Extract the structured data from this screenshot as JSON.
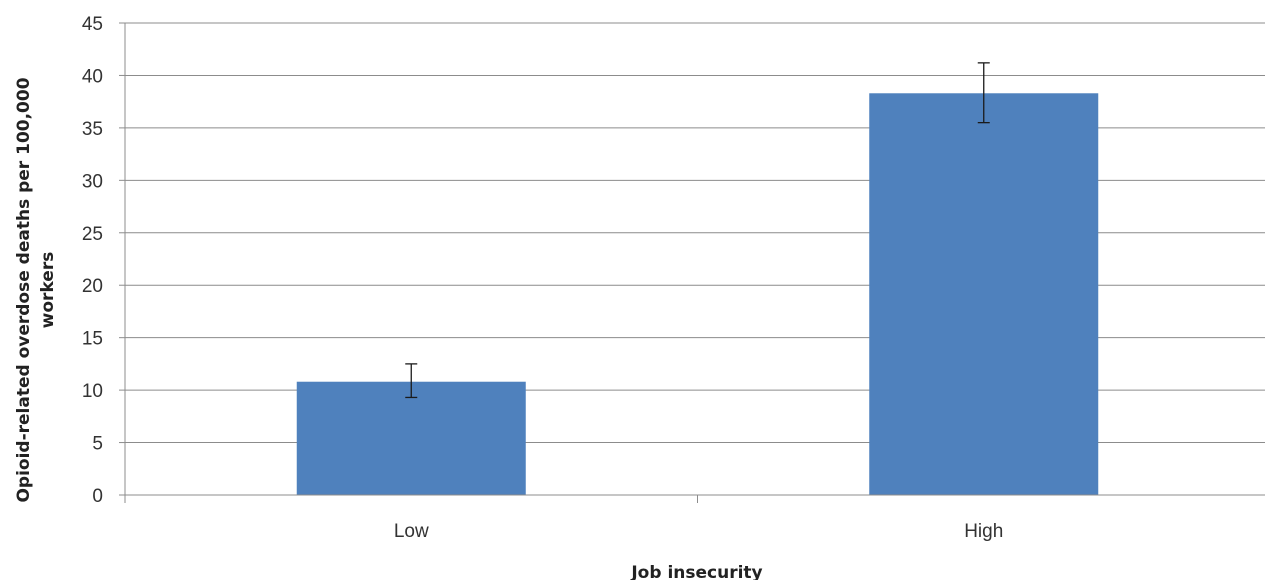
{
  "chart_data": {
    "type": "bar",
    "categories": [
      "Low",
      "High"
    ],
    "values": [
      10.8,
      38.3
    ],
    "error_low": [
      9.3,
      35.5
    ],
    "error_high": [
      12.5,
      41.2
    ],
    "xlabel": "Job insecurity",
    "ylabel": "Opioid-related overdose  deaths per 100,000 workers",
    "ylabel_lines": [
      "Opioid-related overdose  deaths per 100,000",
      "workers"
    ],
    "ylim": [
      0,
      45
    ],
    "yticks": [
      0,
      5,
      10,
      15,
      20,
      25,
      30,
      35,
      40,
      45
    ],
    "grid": true,
    "bar_color": "#4F81BD"
  }
}
